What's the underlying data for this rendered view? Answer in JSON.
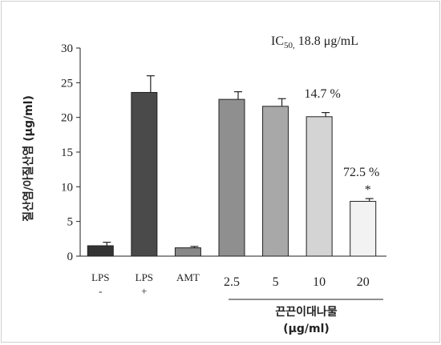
{
  "chart_data": {
    "type": "bar",
    "title": "",
    "ic50_prefix": "IC",
    "ic50_sub": "50,",
    "ic50_value": "18.8 μg/mL",
    "ylabel": "질산염/아질산염 (μg/ml)",
    "xlabel_line1": "끈끈이대나물",
    "xlabel_line2": "(μg/ml)",
    "ylim": [
      0,
      30
    ],
    "yticks": [
      "0",
      "5",
      "10",
      "15",
      "20",
      "25",
      "30"
    ],
    "categories": [
      {
        "line1": "LPS",
        "line2": "-"
      },
      {
        "line1": "LPS",
        "line2": "+"
      },
      {
        "line1": "AMT",
        "line2": ""
      },
      {
        "line1": "2.5",
        "line2": ""
      },
      {
        "line1": "5",
        "line2": ""
      },
      {
        "line1": "10",
        "line2": ""
      },
      {
        "line1": "20",
        "line2": ""
      }
    ],
    "values": [
      1.5,
      23.6,
      1.2,
      22.6,
      21.6,
      20.1,
      7.9
    ],
    "errors": [
      0.5,
      2.4,
      0.2,
      1.1,
      1.1,
      0.6,
      0.4
    ],
    "colors": [
      "#333333",
      "#4a4a4a",
      "#888888",
      "#8f8f8f",
      "#a8a8a8",
      "#d4d4d4",
      "#f2f2f2"
    ],
    "annotations": [
      {
        "bar": 5,
        "text": "14.7 %"
      },
      {
        "bar": 6,
        "text": "72.5 %"
      },
      {
        "bar": 6,
        "text": "*"
      }
    ]
  }
}
